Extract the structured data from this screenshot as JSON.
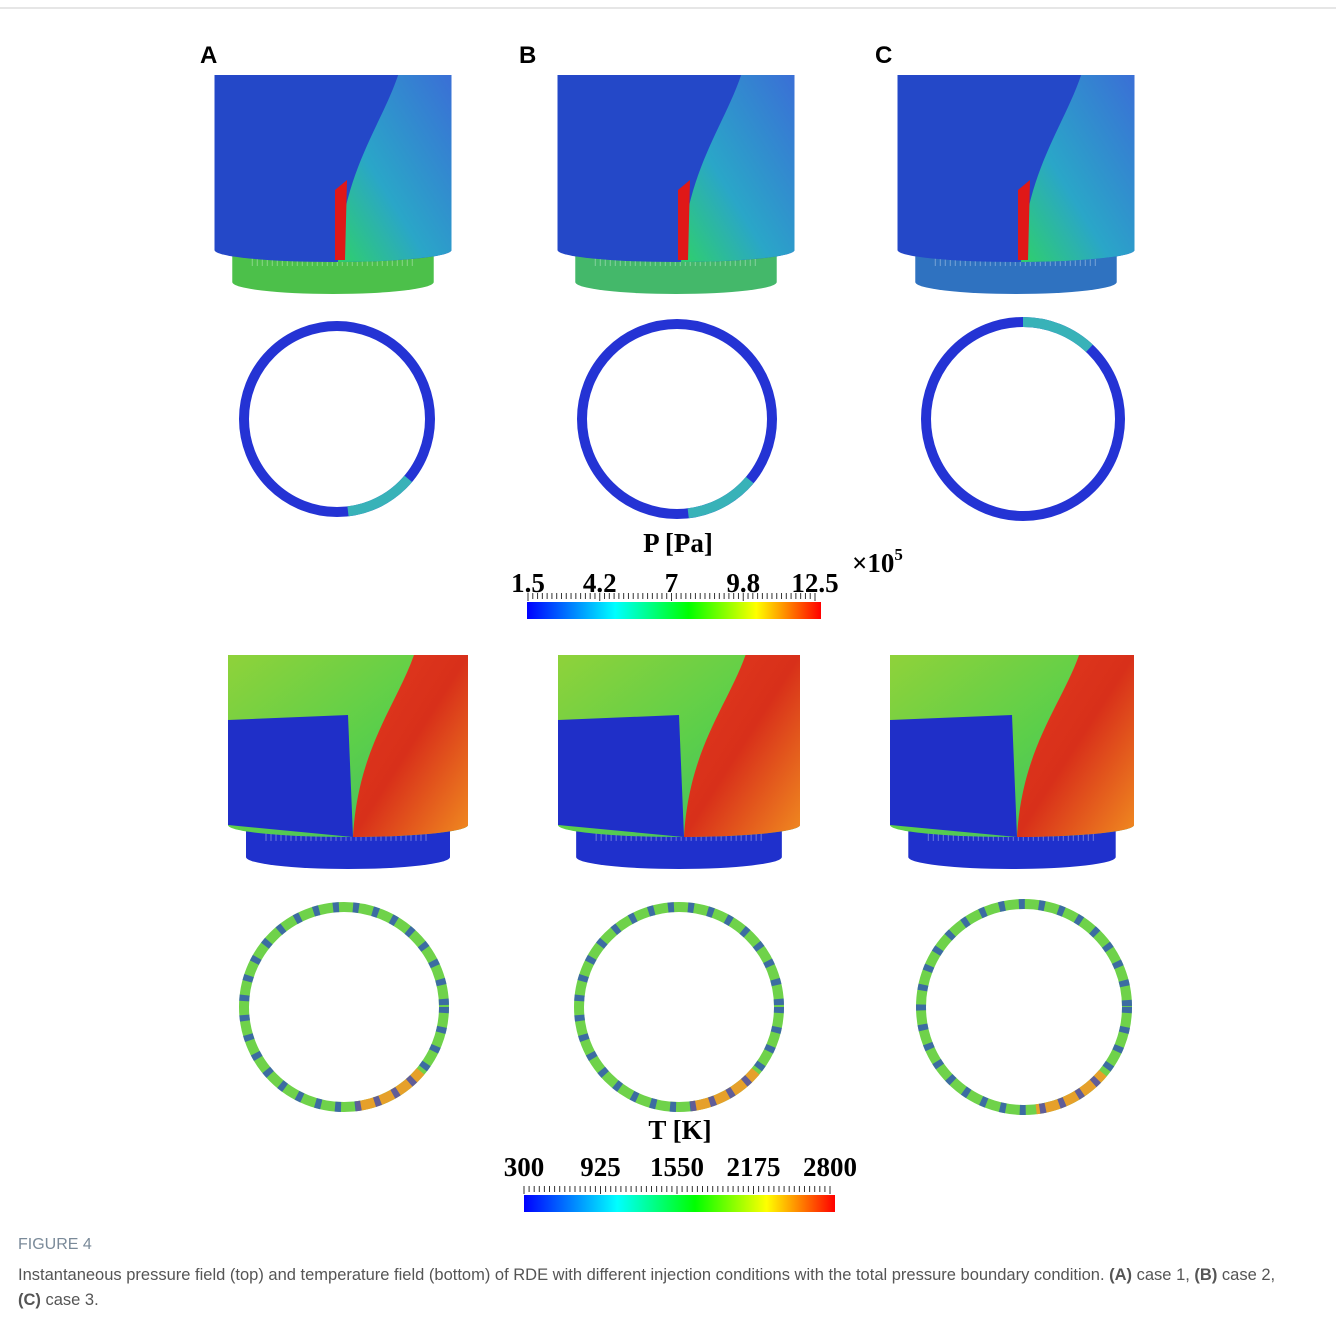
{
  "figure": {
    "panel_labels": [
      "A",
      "B",
      "C"
    ],
    "pressure_colorbar": {
      "title": "P [Pa]",
      "ticks": [
        1.5,
        4.2,
        7,
        9.8,
        12.5
      ],
      "multiplier": {
        "base": "×10",
        "exponent": "5"
      }
    },
    "temperature_colorbar": {
      "title": "T [K]",
      "ticks": [
        300,
        925,
        1550,
        2175,
        2800
      ]
    },
    "caption": {
      "label": "FIGURE 4",
      "segments": [
        {
          "text": "Instantaneous pressure field (top) and temperature field (bottom) of RDE with different injection conditions with the total pressure boundary condition. ",
          "bold": false
        },
        {
          "text": "(A)",
          "bold": true
        },
        {
          "text": " case 1, ",
          "bold": false
        },
        {
          "text": "(B)",
          "bold": true
        },
        {
          "text": " case 2, ",
          "bold": false
        },
        {
          "text": "(C)",
          "bold": true
        },
        {
          "text": " case 3.",
          "bold": false
        }
      ]
    }
  }
}
